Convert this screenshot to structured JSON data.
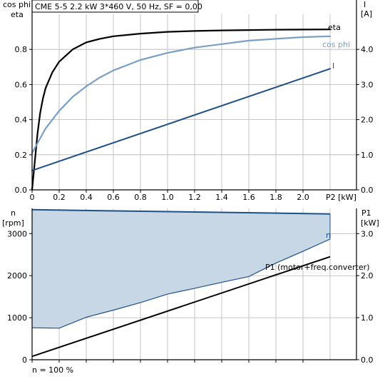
{
  "colors": {
    "eta": "#000000",
    "cos_phi": "#7a9fc4",
    "current": "#1e4f86",
    "speed": "#1e4f86",
    "speed_fill": "#c8d7e6",
    "p1": "#000000",
    "grid": "#b5b5b5"
  },
  "footer": {
    "label": "n = 100 %"
  },
  "chart_data": [
    {
      "type": "line",
      "title": "CME 5-5   2.2 kW   3*460 V, 50 Hz, SF = 0,00",
      "xlabel": "P2 [kW]",
      "ylabel_left_line1": "cos phi",
      "ylabel_left_line2": "eta",
      "ylabel_right_line1": "I",
      "ylabel_right_line2": "[A]",
      "xlim": [
        0,
        2.4
      ],
      "ylim_left": [
        0,
        1.0
      ],
      "ylim_right": [
        0,
        5.0
      ],
      "x_ticks": [
        "0",
        "0.2",
        "0.4",
        "0.6",
        "0.8",
        "1.0",
        "1.2",
        "1.4",
        "1.6",
        "1.8",
        "2.0"
      ],
      "y_ticks_left": [
        "0.0",
        "0.2",
        "0.4",
        "0.6",
        "0.8"
      ],
      "y_ticks_right": [
        "0.0",
        "1.0",
        "2.0",
        "3.0",
        "4.0"
      ],
      "grid": true,
      "series": [
        {
          "name": "eta",
          "axis": "left",
          "x": [
            0,
            0.02,
            0.04,
            0.06,
            0.08,
            0.1,
            0.15,
            0.2,
            0.3,
            0.4,
            0.5,
            0.6,
            0.8,
            1.0,
            1.2,
            1.4,
            1.6,
            1.8,
            2.0,
            2.2
          ],
          "y": [
            0,
            0.16,
            0.32,
            0.44,
            0.52,
            0.58,
            0.67,
            0.73,
            0.8,
            0.84,
            0.86,
            0.875,
            0.89,
            0.9,
            0.905,
            0.908,
            0.91,
            0.912,
            0.913,
            0.914
          ]
        },
        {
          "name": "cos phi",
          "axis": "left",
          "x": [
            0,
            0.05,
            0.1,
            0.2,
            0.3,
            0.4,
            0.5,
            0.6,
            0.8,
            1.0,
            1.2,
            1.4,
            1.6,
            1.8,
            2.0,
            2.2
          ],
          "y": [
            0.21,
            0.28,
            0.35,
            0.45,
            0.53,
            0.59,
            0.64,
            0.68,
            0.74,
            0.78,
            0.81,
            0.83,
            0.85,
            0.86,
            0.87,
            0.875
          ]
        },
        {
          "name": "I",
          "axis": "right",
          "x": [
            0,
            2.2
          ],
          "y": [
            0.55,
            3.45
          ]
        }
      ]
    },
    {
      "type": "area",
      "xlabel": "",
      "ylabel_left_line1": "n",
      "ylabel_left_line2": "[rpm]",
      "ylabel_right_line1": "P1",
      "ylabel_right_line2": "[kW]",
      "xlim": [
        0,
        2.4
      ],
      "ylim_left": [
        0,
        3600
      ],
      "ylim_right": [
        0,
        3.6
      ],
      "y_ticks_left": [
        "0",
        "1000",
        "2000",
        "3000"
      ],
      "y_ticks_right": [
        "0.0",
        "1.0",
        "2.0",
        "3.0"
      ],
      "grid": true,
      "series": [
        {
          "name": "n",
          "axis": "left",
          "x": [
            0,
            2.2
          ],
          "y": [
            3570,
            3470
          ]
        },
        {
          "name": "",
          "axis": "left",
          "x": [
            0,
            0.2,
            0.4,
            0.6,
            0.8,
            1.0,
            1.2,
            1.4,
            1.6,
            1.8,
            2.0,
            2.2
          ],
          "y": [
            760,
            750,
            1010,
            1180,
            1360,
            1560,
            1700,
            1840,
            1980,
            2300,
            2580,
            2870
          ]
        },
        {
          "name": "P1 (motor+freq.converter)",
          "axis": "right",
          "x": [
            0,
            2.2
          ],
          "y": [
            0.08,
            2.45
          ]
        }
      ]
    }
  ]
}
